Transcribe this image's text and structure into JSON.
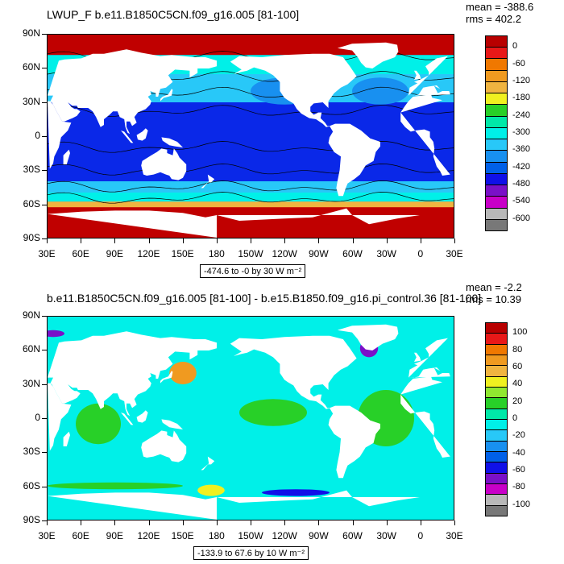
{
  "panels": [
    {
      "title": "LWUP_F b.e11.B1850C5CN.f09_g16.005 [81-100]",
      "mean_text": "mean = -388.6",
      "rms_text": "rms = 402.2",
      "info_text": "-474.6 to -0 by 30  W m⁻²",
      "lat_labels": [
        "90N",
        "60N",
        "30N",
        "0",
        "30S",
        "60S",
        "90S"
      ],
      "lon_labels": [
        "30E",
        "60E",
        "90E",
        "120E",
        "150E",
        "180",
        "150W",
        "120W",
        "90W",
        "60W",
        "30W",
        "0",
        "30E"
      ],
      "colorbar_labels": [
        "0",
        "-60",
        "-120",
        "-180",
        "-240",
        "-300",
        "-360",
        "-420",
        "-480",
        "-540",
        "-600"
      ],
      "colorbar_colors": [
        "#b80000",
        "#e81818",
        "#f07800",
        "#f09a20",
        "#f0b440",
        "#f0f020",
        "#28d028",
        "#00e8a8",
        "#00f0e8",
        "#28c8f8",
        "#1890f0",
        "#0060e8",
        "#1010e8",
        "#7a10c8",
        "#c800c8",
        "#b8b8b8",
        "#787878"
      ]
    },
    {
      "title": "b.e11.B1850C5CN.f09_g16.005 [81-100] - b.e15.B1850.f09_g16.pi_control.36 [81-100]",
      "mean_text": "mean = -2.2",
      "rms_text": "rms = 10.39",
      "info_text": "-133.9 to 67.6 by 10  W m⁻²",
      "lat_labels": [
        "90N",
        "60N",
        "30N",
        "0",
        "30S",
        "60S",
        "90S"
      ],
      "lon_labels": [
        "30E",
        "60E",
        "90E",
        "120E",
        "150E",
        "180",
        "150W",
        "120W",
        "90W",
        "60W",
        "30W",
        "0",
        "30E"
      ],
      "colorbar_labels": [
        "100",
        "80",
        "60",
        "40",
        "20",
        "0",
        "-20",
        "-40",
        "-60",
        "-80",
        "-100"
      ],
      "colorbar_colors": [
        "#b80000",
        "#e81818",
        "#f07800",
        "#f09a20",
        "#f0b440",
        "#f0f020",
        "#90e830",
        "#28d028",
        "#00e8a8",
        "#00f0e8",
        "#28c8f8",
        "#1890f0",
        "#0060e8",
        "#1010e8",
        "#7a10c8",
        "#c800c8",
        "#b8b8b8",
        "#787878"
      ]
    }
  ],
  "map_colors": {
    "land": "#ffffff",
    "top_trop": "#0a28e8",
    "top_mid": "#1890f0",
    "top_sub": "#28c8f8",
    "top_highlat": "#00f0e8",
    "top_polar": "#c00000",
    "bot_base": "#00f0e8",
    "bot_green": "#28d028",
    "bot_yellow": "#f0f020",
    "bot_orange": "#f09a20",
    "bot_blue": "#1010e8",
    "bot_purple": "#7a10c8"
  }
}
